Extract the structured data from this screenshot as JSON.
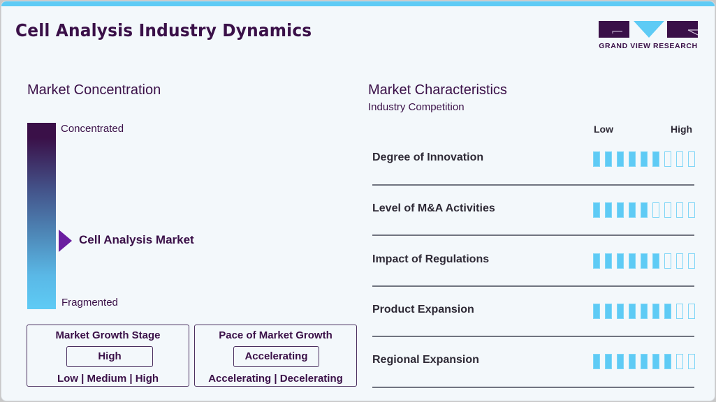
{
  "header": {
    "title": "Cell Analysis Industry Dynamics",
    "logo_text": "GRAND VIEW RESEARCH",
    "accent_color": "#5ecbf5",
    "brand_color": "#3a1048"
  },
  "market_concentration": {
    "title": "Market Concentration",
    "top_label": "Concentrated",
    "bottom_label": "Fragmented",
    "marker_label": "Cell Analysis Market"
  },
  "growth_stage": {
    "title": "Market Growth Stage",
    "value": "High",
    "options": "Low | Medium | High"
  },
  "growth_pace": {
    "title": "Pace of Market Growth",
    "value": "Accelerating",
    "options": "Accelerating | Decelerating"
  },
  "characteristics": {
    "title": "Market Characteristics",
    "subtitle": "Industry Competition",
    "scale_low": "Low",
    "scale_high": "High",
    "max_score": 9,
    "rows": [
      {
        "label": "Degree of Innovation",
        "score": 6
      },
      {
        "label": "Level of M&A Activities",
        "score": 5
      },
      {
        "label": "Impact of Regulations",
        "score": 6
      },
      {
        "label": "Product Expansion",
        "score": 7
      },
      {
        "label": "Regional Expansion",
        "score": 7
      }
    ]
  },
  "chart_data": {
    "type": "table",
    "title": "Market Characteristics - Industry Competition",
    "categories": [
      "Degree of Innovation",
      "Level of M&A Activities",
      "Impact of Regulations",
      "Product Expansion",
      "Regional Expansion"
    ],
    "values": [
      6,
      5,
      6,
      7,
      7
    ],
    "scale": [
      0,
      9
    ],
    "scale_labels": [
      "Low",
      "High"
    ],
    "market_concentration": "Between Concentrated and Fragmented (lower-middle)",
    "market_growth_stage": "High",
    "pace_of_market_growth": "Accelerating"
  }
}
